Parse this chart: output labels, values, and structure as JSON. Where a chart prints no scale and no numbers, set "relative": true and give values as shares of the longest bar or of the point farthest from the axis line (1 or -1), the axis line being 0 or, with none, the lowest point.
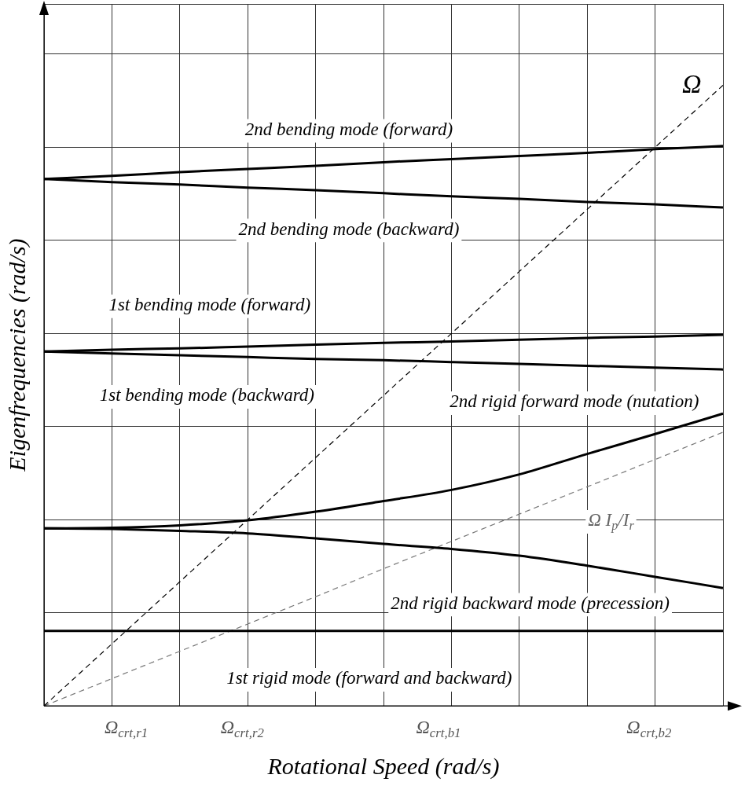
{
  "chart_data": {
    "type": "line",
    "relative": true,
    "xlabel": "Rotational Speed (rad/s)",
    "ylabel": "Eigenfrequencies (rad/s)",
    "categories": [
      null,
      null,
      null,
      null,
      null,
      null,
      null,
      null,
      null,
      null,
      null
    ],
    "grid": true,
    "legend": false,
    "marker": "none",
    "series": [
      {
        "name": "2nd bending mode (forward)",
        "color": "#000000",
        "values": [
          0.849,
          0.854,
          0.86,
          0.865,
          0.87,
          0.876,
          0.881,
          0.886,
          0.891,
          0.897,
          0.902
        ]
      },
      {
        "name": "2nd bending mode (backward)",
        "color": "#000000",
        "values": [
          0.849,
          0.844,
          0.84,
          0.835,
          0.831,
          0.826,
          0.821,
          0.817,
          0.812,
          0.808,
          0.803
        ]
      },
      {
        "name": "1st bending mode (forward)",
        "color": "#000000",
        "values": [
          0.571,
          0.574,
          0.576,
          0.579,
          0.582,
          0.585,
          0.587,
          0.59,
          0.593,
          0.595,
          0.598
        ]
      },
      {
        "name": "1st bending mode (backward)",
        "color": "#000000",
        "values": [
          0.571,
          0.568,
          0.565,
          0.562,
          0.559,
          0.557,
          0.554,
          0.551,
          0.548,
          0.545,
          0.542
        ]
      },
      {
        "name": "2nd rigid forward mode (nutation)",
        "color": "#000000",
        "values": [
          0.286,
          0.287,
          0.291,
          0.299,
          0.313,
          0.33,
          0.348,
          0.373,
          0.406,
          0.438,
          0.471
        ]
      },
      {
        "name": "2nd rigid backward mode (precession)",
        "color": "#000000",
        "values": [
          0.286,
          0.285,
          0.282,
          0.278,
          0.27,
          0.261,
          0.253,
          0.242,
          0.226,
          0.208,
          0.19
        ]
      },
      {
        "name": "1st rigid mode (forward and backward)",
        "color": "#000000",
        "values": [
          0.121,
          0.121,
          0.121,
          0.121,
          0.121,
          0.121,
          0.121,
          0.121,
          0.121,
          0.121,
          0.121
        ]
      },
      {
        "name": "Ω",
        "color": "#000000",
        "line_style": "dashed",
        "values": [
          0,
          0.1,
          0.2,
          0.3,
          0.4,
          0.5,
          0.6,
          0.7,
          0.8,
          0.9,
          1
        ]
      },
      {
        "name": "Ω I$_{p}$/I$_{r}$",
        "color": "#777777",
        "line_style": "dashed",
        "values": [
          0,
          0.044,
          0.088,
          0.132,
          0.176,
          0.221,
          0.265,
          0.309,
          0.353,
          0.397,
          0.441
        ]
      }
    ],
    "annotations": [
      "Ω$_{crt,r1}$",
      "Ω$_{crt,r2}$",
      "Ω$_{crt,b1}$",
      "Ω$_{crt,b2}$"
    ]
  }
}
